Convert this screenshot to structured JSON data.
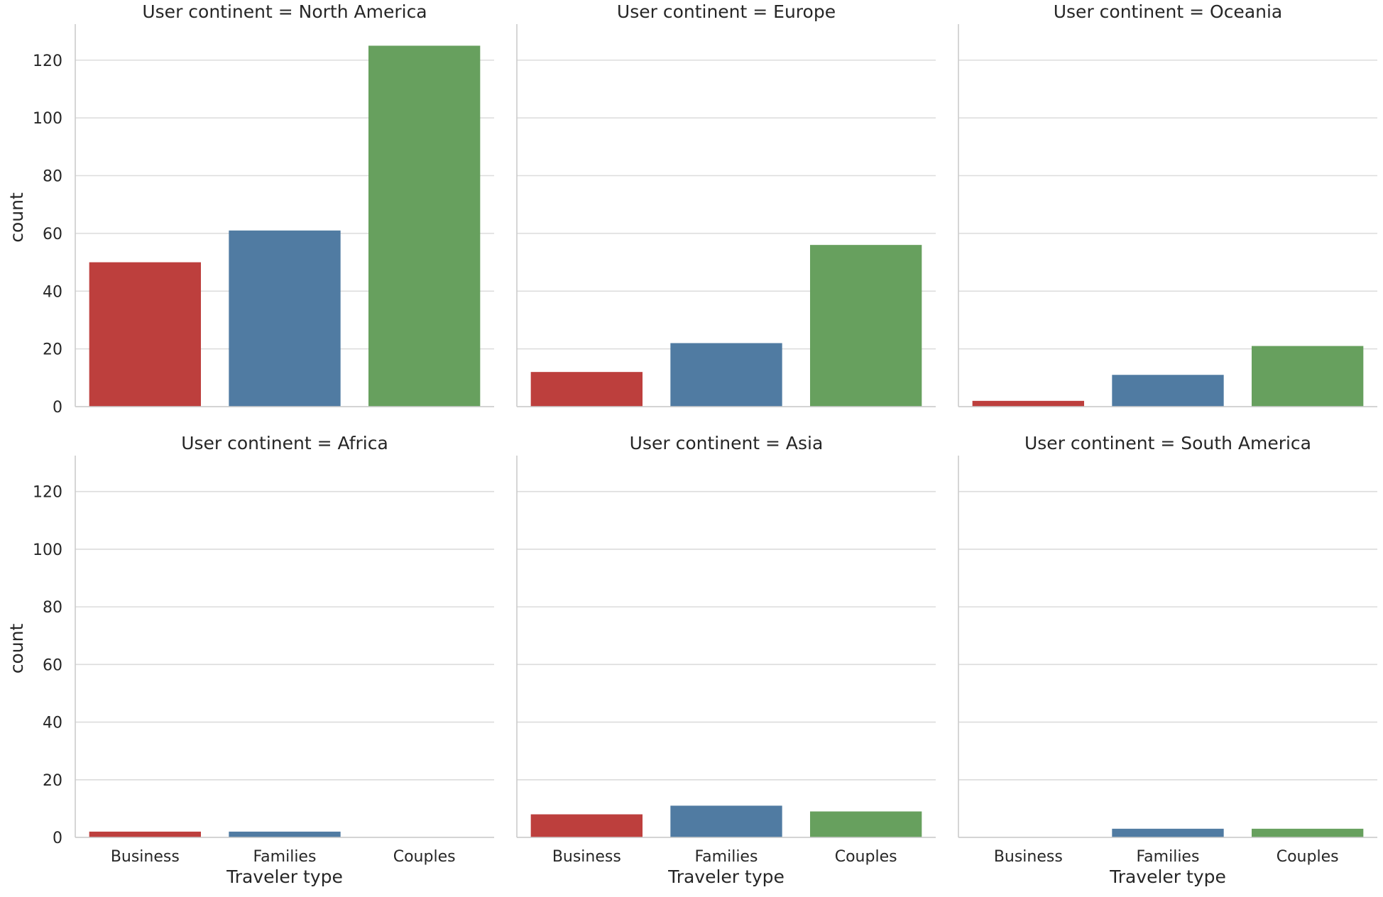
{
  "chart_data": {
    "type": "bar",
    "layout": "facet-grid",
    "facet_label_prefix": "User continent = ",
    "categories": [
      "Business",
      "Families",
      "Couples"
    ],
    "xlabel": "Traveler type",
    "ylabel": "count",
    "ylim": [
      0,
      131
    ],
    "yticks": [
      0,
      20,
      40,
      60,
      80,
      100,
      120
    ],
    "grid": "horizontal",
    "colors": {
      "Business": "#bd3f3d",
      "Families": "#507ba2",
      "Couples": "#67a05e"
    },
    "facets": [
      {
        "title": "User continent = North America",
        "values": [
          50,
          61,
          125
        ]
      },
      {
        "title": "User continent = Europe",
        "values": [
          12,
          22,
          56
        ]
      },
      {
        "title": "User continent = Oceania",
        "values": [
          2,
          11,
          21
        ]
      },
      {
        "title": "User continent = Africa",
        "values": [
          2,
          2,
          0
        ]
      },
      {
        "title": "User continent = Asia",
        "values": [
          8,
          11,
          9
        ]
      },
      {
        "title": "User continent = South America",
        "values": [
          0,
          3,
          3
        ]
      }
    ]
  }
}
